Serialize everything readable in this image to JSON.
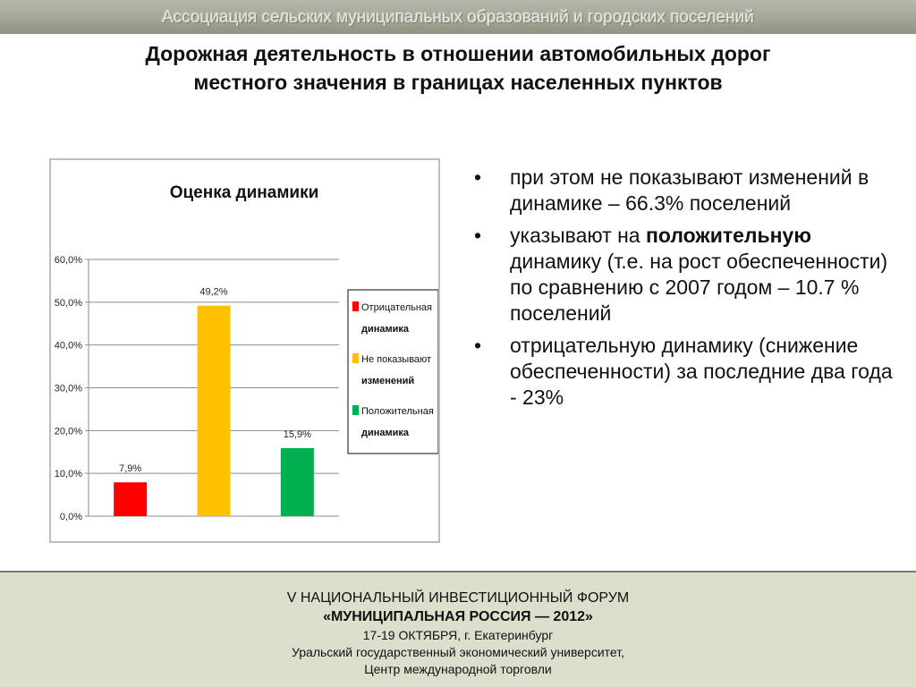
{
  "header": {
    "association": "Ассоциация сельских муниципальных образований и городских поселений",
    "title_line1": "Дорожная деятельность в отношении автомобильных дорог",
    "title_line2": "местного значения в границах населенных пунктов"
  },
  "chart_data": {
    "type": "bar",
    "title": "Оценка динамики",
    "categories": [
      "Отрицательная динамика",
      "Не показывают изменений",
      "Положительная динамика"
    ],
    "values": [
      7.9,
      49.2,
      15.9
    ],
    "data_labels": [
      "7,9%",
      "49,2%",
      "15,9%"
    ],
    "colors": [
      "#ff0000",
      "#ffc000",
      "#00b050"
    ],
    "ylim": [
      0,
      60
    ],
    "yticks": [
      "0,0%",
      "10,0%",
      "20,0%",
      "30,0%",
      "40,0%",
      "50,0%",
      "60,0%"
    ],
    "grid": true,
    "legend_position": "right",
    "legend": [
      {
        "line1": "Отрицательная",
        "line2": "динамика"
      },
      {
        "line1": "Не показывают",
        "line2": "изменений"
      },
      {
        "line1": "Положительная",
        "line2": "динамика"
      }
    ]
  },
  "bullets": [
    {
      "text": " при этом не показывают изменений в динамике – 66.3% поселений"
    },
    {
      "pre": "указывают на ",
      "bold": "положительную",
      "post": " динамику (т.е. на рост обеспеченности) по сравнению с 2007 годом – 10.7 % поселений"
    },
    {
      "text": "отрицательную динамику (снижение обеспеченности) за последние два года -  23%"
    }
  ],
  "bullet_symbol": "•",
  "footer": {
    "line1": "V НАЦИОНАЛЬНЫЙ ИНВЕСТИЦИОННЫЙ ФОРУМ",
    "line2": "«МУНИЦИПАЛЬНАЯ РОССИЯ — 2012»",
    "line3": "17-19 ОКТЯБРЯ, г. Екатеринбург",
    "line4": "Уральский государственный экономический университет,",
    "line5": "Центр международной торговли"
  }
}
